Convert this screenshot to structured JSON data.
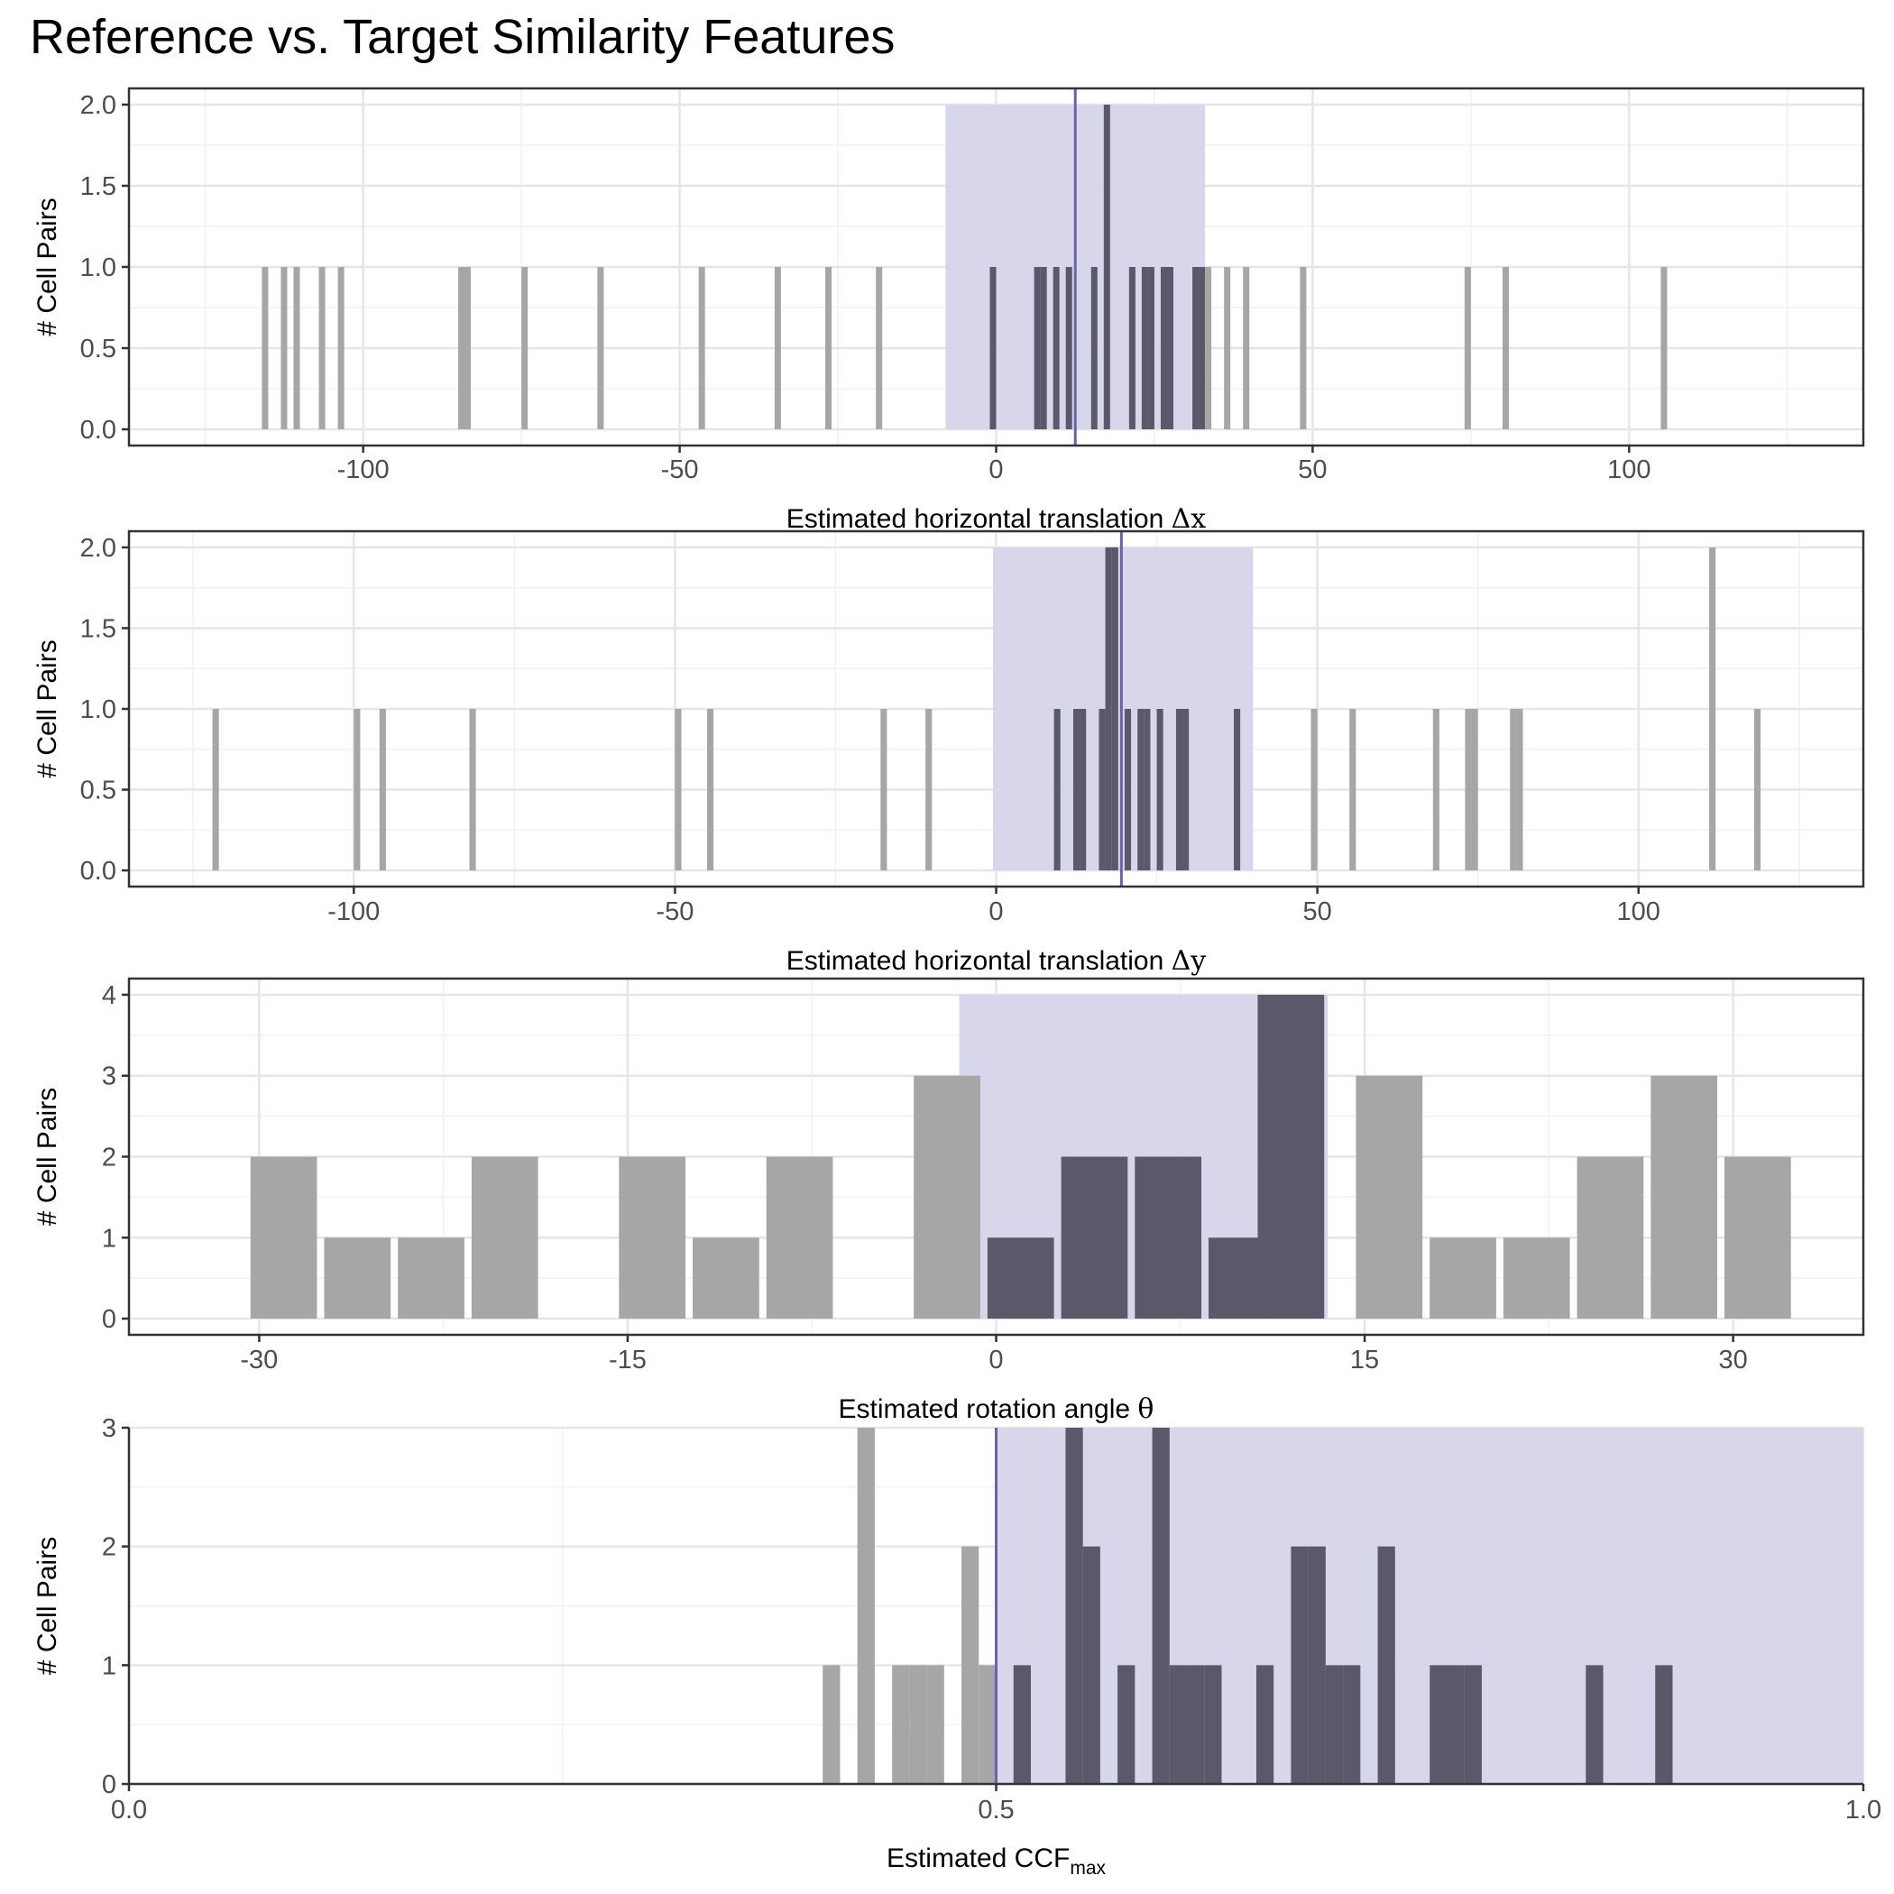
{
  "title": "Reference vs. Target Similarity Features",
  "colors": {
    "gray_bar": "#a6a6a6",
    "dark_bar": "#5b5869",
    "band_fill": "#d6d4ea",
    "median_line": "#6b63a8",
    "grid_major": "#e6e6e6",
    "grid_minor": "#f2f2f2",
    "panel_border": "#333333"
  },
  "chart_data": [
    {
      "type": "bar",
      "xlabel_main": "Estimated horizontal translation ",
      "xlabel_symbol": "Δx",
      "ylabel": "# Cell Pairs",
      "xlim": [
        -137,
        137
      ],
      "ylim": [
        -0.1,
        2.1
      ],
      "xticks": [
        -100,
        -50,
        0,
        50,
        100
      ],
      "yticks": [
        0,
        0.5,
        1,
        1.5,
        2
      ],
      "ytick_labels": [
        "0.0",
        "0.5",
        "1.0",
        "1.5",
        "2.0"
      ],
      "bin_width": 1,
      "band": [
        -8,
        33
      ],
      "median": 12.5,
      "bars": [
        {
          "x": -115.5,
          "v": 1
        },
        {
          "x": -112.5,
          "v": 1
        },
        {
          "x": -110.5,
          "v": 1
        },
        {
          "x": -106.5,
          "v": 1
        },
        {
          "x": -103.5,
          "v": 1
        },
        {
          "x": -84.5,
          "v": 1
        },
        {
          "x": -83.5,
          "v": 1
        },
        {
          "x": -74.5,
          "v": 1
        },
        {
          "x": -62.5,
          "v": 1
        },
        {
          "x": -46.5,
          "v": 1
        },
        {
          "x": -34.5,
          "v": 1
        },
        {
          "x": -26.5,
          "v": 1
        },
        {
          "x": -18.5,
          "v": 1
        },
        {
          "x": -0.5,
          "v": 1
        },
        {
          "x": 6.5,
          "v": 1
        },
        {
          "x": 7.5,
          "v": 1
        },
        {
          "x": 9.5,
          "v": 1
        },
        {
          "x": 11.5,
          "v": 1
        },
        {
          "x": 15.5,
          "v": 1
        },
        {
          "x": 17.5,
          "v": 2
        },
        {
          "x": 21.5,
          "v": 1
        },
        {
          "x": 23.5,
          "v": 1
        },
        {
          "x": 24.5,
          "v": 1
        },
        {
          "x": 26.5,
          "v": 1
        },
        {
          "x": 27.5,
          "v": 1
        },
        {
          "x": 31.5,
          "v": 1
        },
        {
          "x": 32.5,
          "v": 1
        },
        {
          "x": 33.5,
          "v": 1
        },
        {
          "x": 36.5,
          "v": 1
        },
        {
          "x": 39.5,
          "v": 1
        },
        {
          "x": 48.5,
          "v": 1
        },
        {
          "x": 74.5,
          "v": 1
        },
        {
          "x": 80.5,
          "v": 1
        },
        {
          "x": 105.5,
          "v": 1
        }
      ]
    },
    {
      "type": "bar",
      "xlabel_main": "Estimated horizontal translation ",
      "xlabel_symbol": "Δy",
      "ylabel": "# Cell Pairs",
      "xlim": [
        -135,
        135
      ],
      "ylim": [
        -0.1,
        2.1
      ],
      "xticks": [
        -100,
        -50,
        0,
        50,
        100
      ],
      "yticks": [
        0,
        0.5,
        1,
        1.5,
        2
      ],
      "ytick_labels": [
        "0.0",
        "0.5",
        "1.0",
        "1.5",
        "2.0"
      ],
      "bin_width": 1,
      "band": [
        -0.5,
        40
      ],
      "median": 19.5,
      "bars": [
        {
          "x": -121.5,
          "v": 1
        },
        {
          "x": -99.5,
          "v": 1
        },
        {
          "x": -95.5,
          "v": 1
        },
        {
          "x": -81.5,
          "v": 1
        },
        {
          "x": -49.5,
          "v": 1
        },
        {
          "x": -44.5,
          "v": 1
        },
        {
          "x": -17.5,
          "v": 1
        },
        {
          "x": -10.5,
          "v": 1
        },
        {
          "x": 9.5,
          "v": 1
        },
        {
          "x": 12.5,
          "v": 1
        },
        {
          "x": 13.5,
          "v": 1
        },
        {
          "x": 16.5,
          "v": 1
        },
        {
          "x": 17.5,
          "v": 2
        },
        {
          "x": 18.5,
          "v": 2
        },
        {
          "x": 20.5,
          "v": 1
        },
        {
          "x": 22.5,
          "v": 1
        },
        {
          "x": 23.5,
          "v": 1
        },
        {
          "x": 25.5,
          "v": 1
        },
        {
          "x": 28.5,
          "v": 1
        },
        {
          "x": 29.5,
          "v": 1
        },
        {
          "x": 37.5,
          "v": 1
        },
        {
          "x": 49.5,
          "v": 1
        },
        {
          "x": 55.5,
          "v": 1
        },
        {
          "x": 68.5,
          "v": 1
        },
        {
          "x": 73.5,
          "v": 1
        },
        {
          "x": 74.5,
          "v": 1
        },
        {
          "x": 80.5,
          "v": 1
        },
        {
          "x": 81.5,
          "v": 1
        },
        {
          "x": 111.5,
          "v": 2
        },
        {
          "x": 118.5,
          "v": 1
        }
      ]
    },
    {
      "type": "bar",
      "xlabel_main": "Estimated rotation angle ",
      "xlabel_symbol": "θ",
      "ylabel": "# Cell Pairs",
      "xlim": [
        -35.3,
        35.3
      ],
      "ylim": [
        -0.2,
        4.2
      ],
      "xticks": [
        -30,
        -15,
        0,
        15,
        30
      ],
      "yticks": [
        0,
        1,
        2,
        3,
        4
      ],
      "ytick_labels": [
        "0",
        "1",
        "2",
        "3",
        "4"
      ],
      "bin_width": 3,
      "band": [
        -1.5,
        13.5
      ],
      "median": null,
      "bars": [
        {
          "x": -29,
          "v": 2
        },
        {
          "x": -26,
          "v": 1
        },
        {
          "x": -23,
          "v": 1
        },
        {
          "x": -20,
          "v": 2
        },
        {
          "x": -14,
          "v": 2
        },
        {
          "x": -11,
          "v": 1
        },
        {
          "x": -8,
          "v": 2
        },
        {
          "x": -2,
          "v": 3
        },
        {
          "x": 1,
          "v": 1
        },
        {
          "x": 4,
          "v": 2
        },
        {
          "x": 7,
          "v": 2
        },
        {
          "x": 10,
          "v": 1
        },
        {
          "x": 12,
          "v": 4
        },
        {
          "x": 16,
          "v": 3
        },
        {
          "x": 19,
          "v": 1
        },
        {
          "x": 22,
          "v": 1
        },
        {
          "x": 25,
          "v": 2
        },
        {
          "x": 28,
          "v": 3
        },
        {
          "x": 31,
          "v": 2
        }
      ]
    },
    {
      "type": "bar",
      "xlabel_main": "Estimated CCF",
      "xlabel_sub": "max",
      "ylabel": "# Cell Pairs",
      "xlim": [
        0,
        1
      ],
      "ylim": [
        0,
        3
      ],
      "xticks": [
        0,
        0.5,
        1
      ],
      "xtick_labels": [
        "0.0",
        "0.5",
        "1.0"
      ],
      "yticks": [
        0,
        1,
        2,
        3
      ],
      "ytick_labels": [
        "0",
        "1",
        "2",
        "3"
      ],
      "bin_width": 0.01,
      "band": [
        0.5,
        1.0
      ],
      "median": 0.5,
      "bars": [
        {
          "x": 0.405,
          "v": 1
        },
        {
          "x": 0.425,
          "v": 3
        },
        {
          "x": 0.445,
          "v": 1
        },
        {
          "x": 0.455,
          "v": 1
        },
        {
          "x": 0.465,
          "v": 1
        },
        {
          "x": 0.485,
          "v": 2
        },
        {
          "x": 0.495,
          "v": 1
        },
        {
          "x": 0.515,
          "v": 1
        },
        {
          "x": 0.545,
          "v": 3
        },
        {
          "x": 0.555,
          "v": 2
        },
        {
          "x": 0.575,
          "v": 1
        },
        {
          "x": 0.595,
          "v": 3
        },
        {
          "x": 0.605,
          "v": 1
        },
        {
          "x": 0.615,
          "v": 1
        },
        {
          "x": 0.625,
          "v": 1
        },
        {
          "x": 0.655,
          "v": 1
        },
        {
          "x": 0.675,
          "v": 2
        },
        {
          "x": 0.685,
          "v": 2
        },
        {
          "x": 0.695,
          "v": 1
        },
        {
          "x": 0.705,
          "v": 1
        },
        {
          "x": 0.725,
          "v": 2
        },
        {
          "x": 0.755,
          "v": 1
        },
        {
          "x": 0.765,
          "v": 1
        },
        {
          "x": 0.775,
          "v": 1
        },
        {
          "x": 0.845,
          "v": 1
        },
        {
          "x": 0.885,
          "v": 1
        }
      ]
    }
  ]
}
